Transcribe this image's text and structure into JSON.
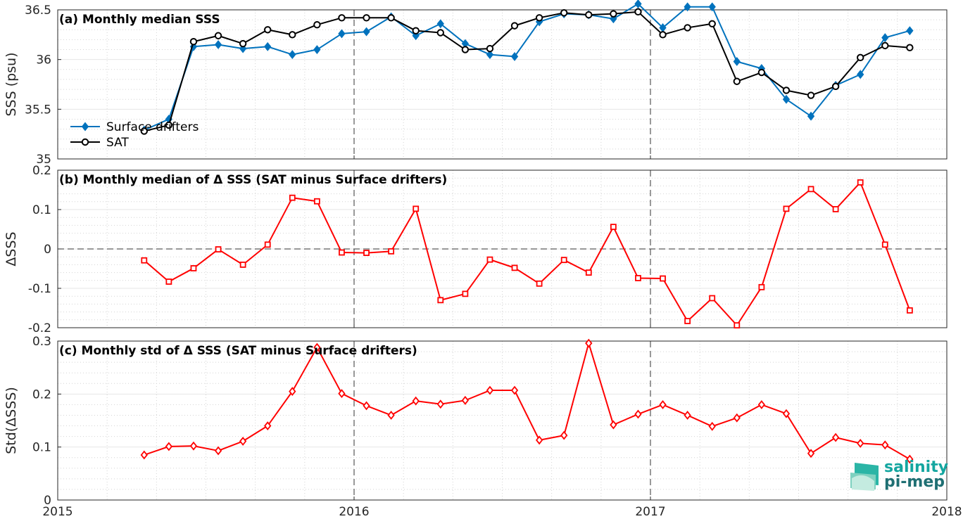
{
  "colors": {
    "drifters": "#0072BD",
    "sat": "#000000",
    "delta": "#ff0000"
  },
  "logo": {
    "line1": "salinity",
    "line2": "pi-mep"
  },
  "chart_data": [
    {
      "type": "line",
      "title": "(a) Monthly median SSS",
      "ylabel": "SSS (psu)",
      "xlim": [
        2015,
        2018
      ],
      "ylim": [
        35,
        36.5
      ],
      "yticks": [
        "35",
        "35.5",
        "36",
        "36.5"
      ],
      "xticks": [
        "2015",
        "2016",
        "2017",
        "2018"
      ],
      "legend": {
        "position": "bottom-left"
      },
      "x": [
        "2015-04",
        "2015-05",
        "2015-06",
        "2015-07",
        "2015-08",
        "2015-09",
        "2015-10",
        "2015-11",
        "2015-12",
        "2016-01",
        "2016-02",
        "2016-03",
        "2016-04",
        "2016-05",
        "2016-06",
        "2016-07",
        "2016-08",
        "2016-09",
        "2016-10",
        "2016-11",
        "2016-12",
        "2017-01",
        "2017-02",
        "2017-03",
        "2017-04",
        "2017-05",
        "2017-06",
        "2017-07",
        "2017-08",
        "2017-09",
        "2017-10",
        "2017-11"
      ],
      "series": [
        {
          "name": "Surface drifters",
          "marker": "diamond",
          "values": [
            35.29,
            35.4,
            36.13,
            36.15,
            36.11,
            36.13,
            36.05,
            36.1,
            36.26,
            36.28,
            36.43,
            36.24,
            36.36,
            36.16,
            36.05,
            36.03,
            36.38,
            36.46,
            36.45,
            36.41,
            36.56,
            36.32,
            36.53,
            36.53,
            35.98,
            35.91,
            35.6,
            35.43,
            35.74,
            35.85,
            36.22,
            36.29
          ]
        },
        {
          "name": "SAT",
          "marker": "circle",
          "values": [
            35.28,
            35.34,
            36.18,
            36.24,
            36.16,
            36.3,
            36.25,
            36.35,
            36.42,
            36.42,
            36.42,
            36.29,
            36.27,
            36.1,
            36.11,
            36.34,
            36.42,
            36.47,
            36.45,
            36.46,
            36.48,
            36.25,
            36.32,
            36.36,
            35.78,
            35.87,
            35.69,
            35.64,
            35.73,
            36.02,
            36.14,
            36.12
          ]
        }
      ]
    },
    {
      "type": "line",
      "title": "(b) Monthly median of Δ SSS (SAT minus Surface drifters)",
      "ylabel": "ΔSSS",
      "xlim": [
        2015,
        2018
      ],
      "ylim": [
        -0.2,
        0.2
      ],
      "yticks": [
        "-0.2",
        "-0.1",
        "0",
        "0.1",
        "0.2"
      ],
      "xticks": [
        "2015",
        "2016",
        "2017",
        "2018"
      ],
      "x": [
        "2015-04",
        "2015-05",
        "2015-06",
        "2015-07",
        "2015-08",
        "2015-09",
        "2015-10",
        "2015-11",
        "2015-12",
        "2016-01",
        "2016-02",
        "2016-03",
        "2016-04",
        "2016-05",
        "2016-06",
        "2016-07",
        "2016-08",
        "2016-09",
        "2016-10",
        "2016-11",
        "2016-12",
        "2017-01",
        "2017-02",
        "2017-03",
        "2017-04",
        "2017-05",
        "2017-06",
        "2017-07",
        "2017-08",
        "2017-09",
        "2017-10",
        "2017-11"
      ],
      "series": [
        {
          "marker": "square",
          "values": [
            -0.029,
            -0.083,
            -0.049,
            -0.001,
            -0.04,
            0.011,
            0.13,
            0.121,
            -0.009,
            -0.01,
            -0.006,
            0.102,
            -0.13,
            -0.114,
            -0.027,
            -0.048,
            -0.088,
            -0.028,
            -0.06,
            0.056,
            -0.074,
            -0.075,
            -0.183,
            -0.125,
            -0.194,
            -0.097,
            0.102,
            0.152,
            0.101,
            0.169,
            0.011,
            -0.156
          ]
        }
      ]
    },
    {
      "type": "line",
      "title": "(c) Monthly std of Δ SSS (SAT minus Surface drifters)",
      "ylabel": "Std(ΔSSS)",
      "xlim": [
        2015,
        2018
      ],
      "ylim": [
        0,
        0.3
      ],
      "yticks": [
        "0",
        "0.1",
        "0.2",
        "0.3"
      ],
      "xticks": [
        "2015",
        "2016",
        "2017",
        "2018"
      ],
      "x": [
        "2015-04",
        "2015-05",
        "2015-06",
        "2015-07",
        "2015-08",
        "2015-09",
        "2015-10",
        "2015-11",
        "2015-12",
        "2016-01",
        "2016-02",
        "2016-03",
        "2016-04",
        "2016-05",
        "2016-06",
        "2016-07",
        "2016-08",
        "2016-09",
        "2016-10",
        "2016-11",
        "2016-12",
        "2017-01",
        "2017-02",
        "2017-03",
        "2017-04",
        "2017-05",
        "2017-06",
        "2017-07",
        "2017-08",
        "2017-09",
        "2017-10",
        "2017-11"
      ],
      "series": [
        {
          "marker": "diamond",
          "values": [
            0.085,
            0.101,
            0.102,
            0.093,
            0.111,
            0.14,
            0.205,
            0.288,
            0.201,
            0.178,
            0.16,
            0.187,
            0.181,
            0.188,
            0.207,
            0.207,
            0.113,
            0.122,
            0.296,
            0.142,
            0.162,
            0.18,
            0.16,
            0.139,
            0.155,
            0.18,
            0.163,
            0.088,
            0.118,
            0.107,
            0.104,
            0.077
          ]
        }
      ]
    }
  ]
}
